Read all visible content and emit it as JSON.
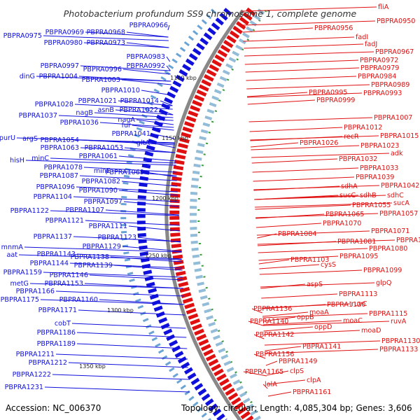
{
  "title": "Photobacterium profundum SS9 chromosome 1, complete genome",
  "footer": {
    "accession": "Accession: NC_006370",
    "summary": "Topology: circular; Length: 4,085,304 bp; Genes: 3,606"
  },
  "colors": {
    "forward_strand": "#1010dd",
    "reverse_strand": "#e01010",
    "backbone": "#888888",
    "tick": "#2a8a2a"
  },
  "scale_marks": [
    "1100 kbp",
    "1150 kbp",
    "1200 kbp",
    "1250 kbp",
    "1300 kbp",
    "1350 kbp"
  ],
  "left_labels": [
    "PBPRA0975",
    "PBPRA0969",
    "PBPRA0968",
    "PBPRA0966",
    "PBPRA0980",
    "PBPRA0973",
    "PBPRA0983",
    "PBPRA0992",
    "PBPRA0997",
    "PBPRA0996",
    "dinG",
    "PBPRA1004",
    "PBPRA1003",
    "PBPRA1010",
    "PBPRA1028",
    "PBPRA1021",
    "PBPRA1014",
    "asnB",
    "PBPRA1022",
    "nagB",
    "PBPRA1037",
    "PBPRA1036",
    "fur",
    "nagA",
    "PBPRA1041",
    "purU",
    "argS",
    "PBPRA1054",
    "gltA",
    "PBPRA1063",
    "PBPRA1053",
    "PBPRA1061",
    "hisH",
    "minC",
    "PBPRA1078",
    "minE",
    "PBPRA1069",
    "PBPRA1087",
    "PBPRA1082",
    "PBPRA1096",
    "PBPRA1090",
    "PBPRA1104",
    "PBPRA1097",
    "PBPRA1122",
    "PBPRA1107",
    "PBPRA1121",
    "PBPRA1111",
    "PBPRA1137",
    "PBPRA1123",
    "mnmA",
    "PBPRA1143",
    "PBPRA1129",
    "aat",
    "PBPRA1138",
    "PBPRA1144",
    "PBPRA1139",
    "PBPRA1159",
    "PBPRA1146",
    "metG",
    "PBPRA1153",
    "PBPRA1166",
    "PBPRA1175",
    "PBPRA1160",
    "PBPRA1171",
    "cobT",
    "PBPRA1186",
    "PBPRA1189",
    "PBPRA1211",
    "PBPRA1212",
    "PBPRA1222",
    "PBPRA1231"
  ],
  "right_labels": [
    "fliA",
    "PBPRA0950",
    "PBPRA0956",
    "fadI",
    "fadJ",
    "PBPRA0967",
    "PBPRA0972",
    "PBPRA0979",
    "PBPRA0984",
    "PBPRA0989",
    "PBPRA0995",
    "PBPRA0993",
    "PBPRA0999",
    "PBPRA1007",
    "PBPRA1012",
    "recR",
    "PBPRA1015",
    "PBPRA1026",
    "PBPRA1023",
    "adk",
    "PBPRA1032",
    "PBPRA1033",
    "PBPRA1039",
    "sdhA",
    "PBPRA1042",
    "sdhB",
    "sdhC",
    "sucC",
    "PBPRA1055",
    "sucA",
    "PBPRA1065",
    "PBPRA1057",
    "PBPRA1070",
    "PBPRA1071",
    "PBPRA1084",
    "PBPRA1081",
    "PBPRA1072",
    "PBPRA1080",
    "PBPRA1103",
    "PBPRA1095",
    "cysS",
    "PBPRA1099",
    "glpQ",
    "aspS",
    "PBPRA1113",
    "PBPRA1120",
    "ruvC",
    "PBPRA1136",
    "moaA",
    "PBPRA1115",
    "ruvA",
    "PBPRA1140",
    "oppB",
    "moaC",
    "oppD",
    "moaD",
    "PBPRA1142",
    "PBPRA1130",
    "PBPRA1133",
    "PBPRA1141",
    "PBPRA1156",
    "PBPRA1149",
    "PBPRA1165",
    "clpS",
    "clpA",
    "lolA",
    "PBPRA1161"
  ]
}
